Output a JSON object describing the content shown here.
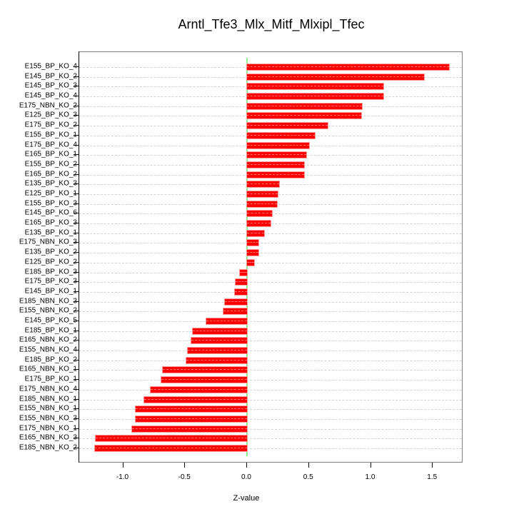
{
  "chart_data": {
    "type": "bar",
    "orientation": "horizontal",
    "title": "Arntl_Tfe3_Mlx_Mitf_Mlxipl_Tfec",
    "xlabel": "Z-value",
    "ylabel": "",
    "xlim": [
      -1.3,
      1.75
    ],
    "xticks": [
      -1.0,
      -0.5,
      0.0,
      0.5,
      1.0,
      1.5
    ],
    "xtick_labels": [
      "-1.0",
      "-0.5",
      "0.0",
      "0.5",
      "1.0",
      "1.5"
    ],
    "grid": "horizontal dashed",
    "reference_line": {
      "x": 0,
      "color": "#90ee90"
    },
    "bar_color": "#ff0000",
    "categories": [
      "E155_BP_KO_4",
      "E145_BP_KO_2",
      "E145_BP_KO_3",
      "E145_BP_KO_4",
      "E175_NBN_KO_2",
      "E125_BP_KO_3",
      "E175_BP_KO_2",
      "E155_BP_KO_1",
      "E175_BP_KO_4",
      "E165_BP_KO_1",
      "E155_BP_KO_2",
      "E165_BP_KO_2",
      "E135_BP_KO_3",
      "E125_BP_KO_1",
      "E155_BP_KO_3",
      "E145_BP_KO_6",
      "E165_BP_KO_3",
      "E135_BP_KO_1",
      "E175_NBN_KO_3",
      "E135_BP_KO_2",
      "E125_BP_KO_2",
      "E185_BP_KO_3",
      "E175_BP_KO_3",
      "E145_BP_KO_1",
      "E185_NBN_KO_3",
      "E155_NBN_KO_2",
      "E145_BP_KO_5",
      "E185_BP_KO_1",
      "E165_NBN_KO_2",
      "E155_NBN_KO_4",
      "E185_BP_KO_2",
      "E165_NBN_KO_1",
      "E175_BP_KO_1",
      "E175_NBN_KO_4",
      "E185_NBN_KO_1",
      "E155_NBN_KO_1",
      "E155_NBN_KO_3",
      "E175_NBN_KO_1",
      "E165_NBN_KO_3",
      "E185_NBN_KO_2"
    ],
    "values": [
      1.63,
      1.43,
      1.1,
      1.1,
      0.93,
      0.92,
      0.65,
      0.55,
      0.5,
      0.48,
      0.46,
      0.46,
      0.26,
      0.25,
      0.24,
      0.2,
      0.19,
      0.14,
      0.09,
      0.09,
      0.06,
      -0.06,
      -0.09,
      -0.1,
      -0.18,
      -0.19,
      -0.33,
      -0.44,
      -0.45,
      -0.48,
      -0.49,
      -0.68,
      -0.69,
      -0.78,
      -0.83,
      -0.9,
      -0.9,
      -0.93,
      -1.22,
      -1.23
    ]
  }
}
